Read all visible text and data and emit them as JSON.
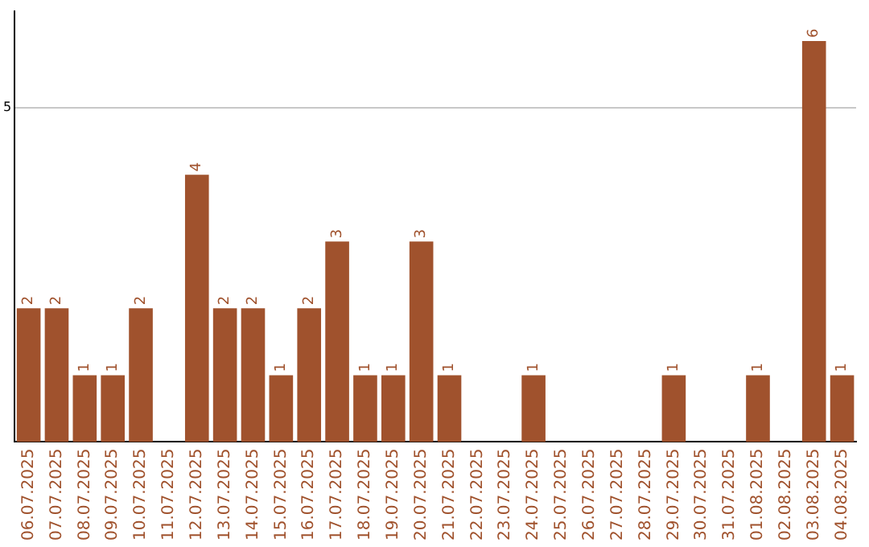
{
  "chart_data": {
    "type": "bar",
    "categories": [
      "06.07.2025",
      "07.07.2025",
      "08.07.2025",
      "09.07.2025",
      "10.07.2025",
      "11.07.2025",
      "12.07.2025",
      "13.07.2025",
      "14.07.2025",
      "15.07.2025",
      "16.07.2025",
      "17.07.2025",
      "18.07.2025",
      "19.07.2025",
      "20.07.2025",
      "21.07.2025",
      "22.07.2025",
      "23.07.2025",
      "24.07.2025",
      "25.07.2025",
      "26.07.2025",
      "27.07.2025",
      "28.07.2025",
      "29.07.2025",
      "30.07.2025",
      "31.07.2025",
      "01.08.2025",
      "02.08.2025",
      "03.08.2025",
      "04.08.2025"
    ],
    "values": [
      2,
      2,
      1,
      1,
      2,
      0,
      4,
      2,
      2,
      1,
      2,
      3,
      1,
      1,
      3,
      1,
      0,
      0,
      1,
      0,
      0,
      0,
      0,
      1,
      0,
      0,
      1,
      0,
      6,
      1
    ],
    "value_labels": [
      "2",
      "2",
      "1",
      "1",
      "2",
      null,
      "4",
      "2",
      "2",
      "1",
      "2",
      "3",
      "1",
      "1",
      "3",
      "1",
      null,
      null,
      "1",
      null,
      null,
      null,
      null,
      "1",
      null,
      null,
      "1",
      null,
      "6",
      "1"
    ],
    "color": "#a0522d",
    "ylim": [
      0,
      6.45
    ],
    "yticks": [
      5
    ],
    "grid": "y",
    "legend": false
  }
}
